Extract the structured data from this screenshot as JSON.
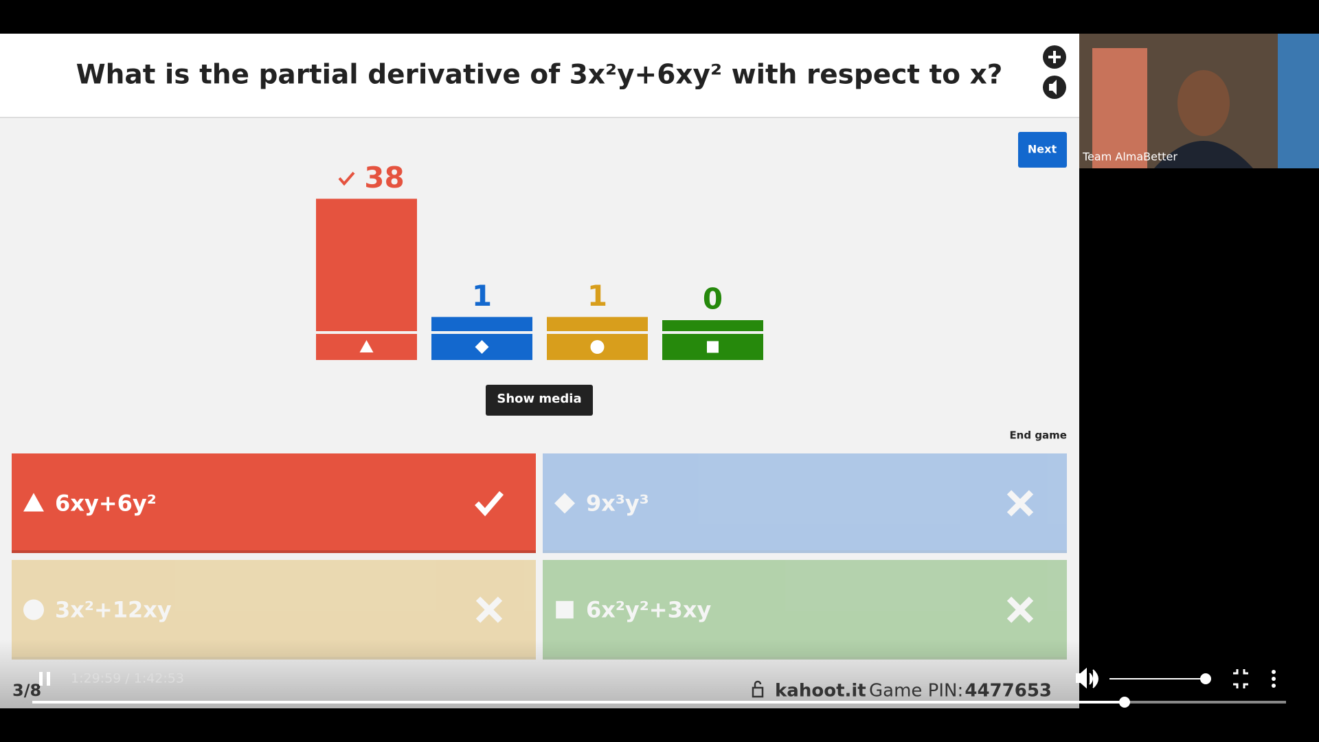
{
  "question": {
    "title": "What is the partial derivative of 3x²y+6xy² with respect to x?"
  },
  "buttons": {
    "next": "Next",
    "show_media": "Show media",
    "end_game": "End game"
  },
  "results": {
    "counts": [
      38,
      1,
      1,
      0
    ],
    "colors": [
      "#e5533f",
      "#1368ce",
      "#d89e1c",
      "#26890c"
    ]
  },
  "answers": [
    {
      "text": "6xy+6y²",
      "correct": true
    },
    {
      "text": "9x³y³",
      "correct": false
    },
    {
      "text": "3x²+12xy",
      "correct": false
    },
    {
      "text": "6x²y²+3xy",
      "correct": false
    }
  ],
  "footer": {
    "progress": "3/8",
    "site": "kahoot.it",
    "pin_label": "Game PIN:",
    "pin": "4477653"
  },
  "player": {
    "time": "1:29:59 / 1:42:53"
  },
  "webcam": {
    "label": "Team AlmaBetter"
  }
}
